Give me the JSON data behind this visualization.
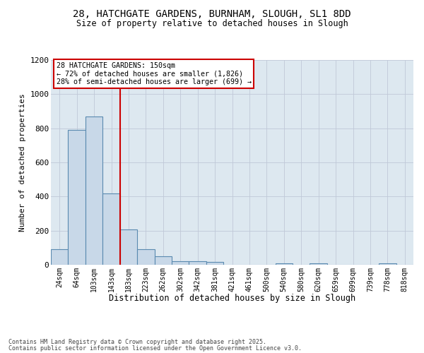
{
  "title_line1": "28, HATCHGATE GARDENS, BURNHAM, SLOUGH, SL1 8DD",
  "title_line2": "Size of property relative to detached houses in Slough",
  "xlabel": "Distribution of detached houses by size in Slough",
  "ylabel": "Number of detached properties",
  "categories": [
    "24sqm",
    "64sqm",
    "103sqm",
    "143sqm",
    "183sqm",
    "223sqm",
    "262sqm",
    "302sqm",
    "342sqm",
    "381sqm",
    "421sqm",
    "461sqm",
    "500sqm",
    "540sqm",
    "580sqm",
    "620sqm",
    "659sqm",
    "699sqm",
    "739sqm",
    "778sqm",
    "818sqm"
  ],
  "values": [
    90,
    790,
    870,
    420,
    205,
    90,
    50,
    20,
    20,
    15,
    0,
    0,
    0,
    10,
    0,
    10,
    0,
    0,
    0,
    10,
    0
  ],
  "bar_color": "#c8d8e8",
  "bar_edge_color": "#5a8ab0",
  "red_line_x": 3.5,
  "annotation_text": "28 HATCHGATE GARDENS: 150sqm\n← 72% of detached houses are smaller (1,826)\n28% of semi-detached houses are larger (699) →",
  "annotation_box_color": "#ffffff",
  "annotation_box_edge": "#cc0000",
  "red_line_color": "#cc0000",
  "grid_color": "#c0c8d8",
  "background_color": "#dde8f0",
  "footer_line1": "Contains HM Land Registry data © Crown copyright and database right 2025.",
  "footer_line2": "Contains public sector information licensed under the Open Government Licence v3.0.",
  "ylim": [
    0,
    1200
  ],
  "yticks": [
    0,
    200,
    400,
    600,
    800,
    1000,
    1200
  ]
}
